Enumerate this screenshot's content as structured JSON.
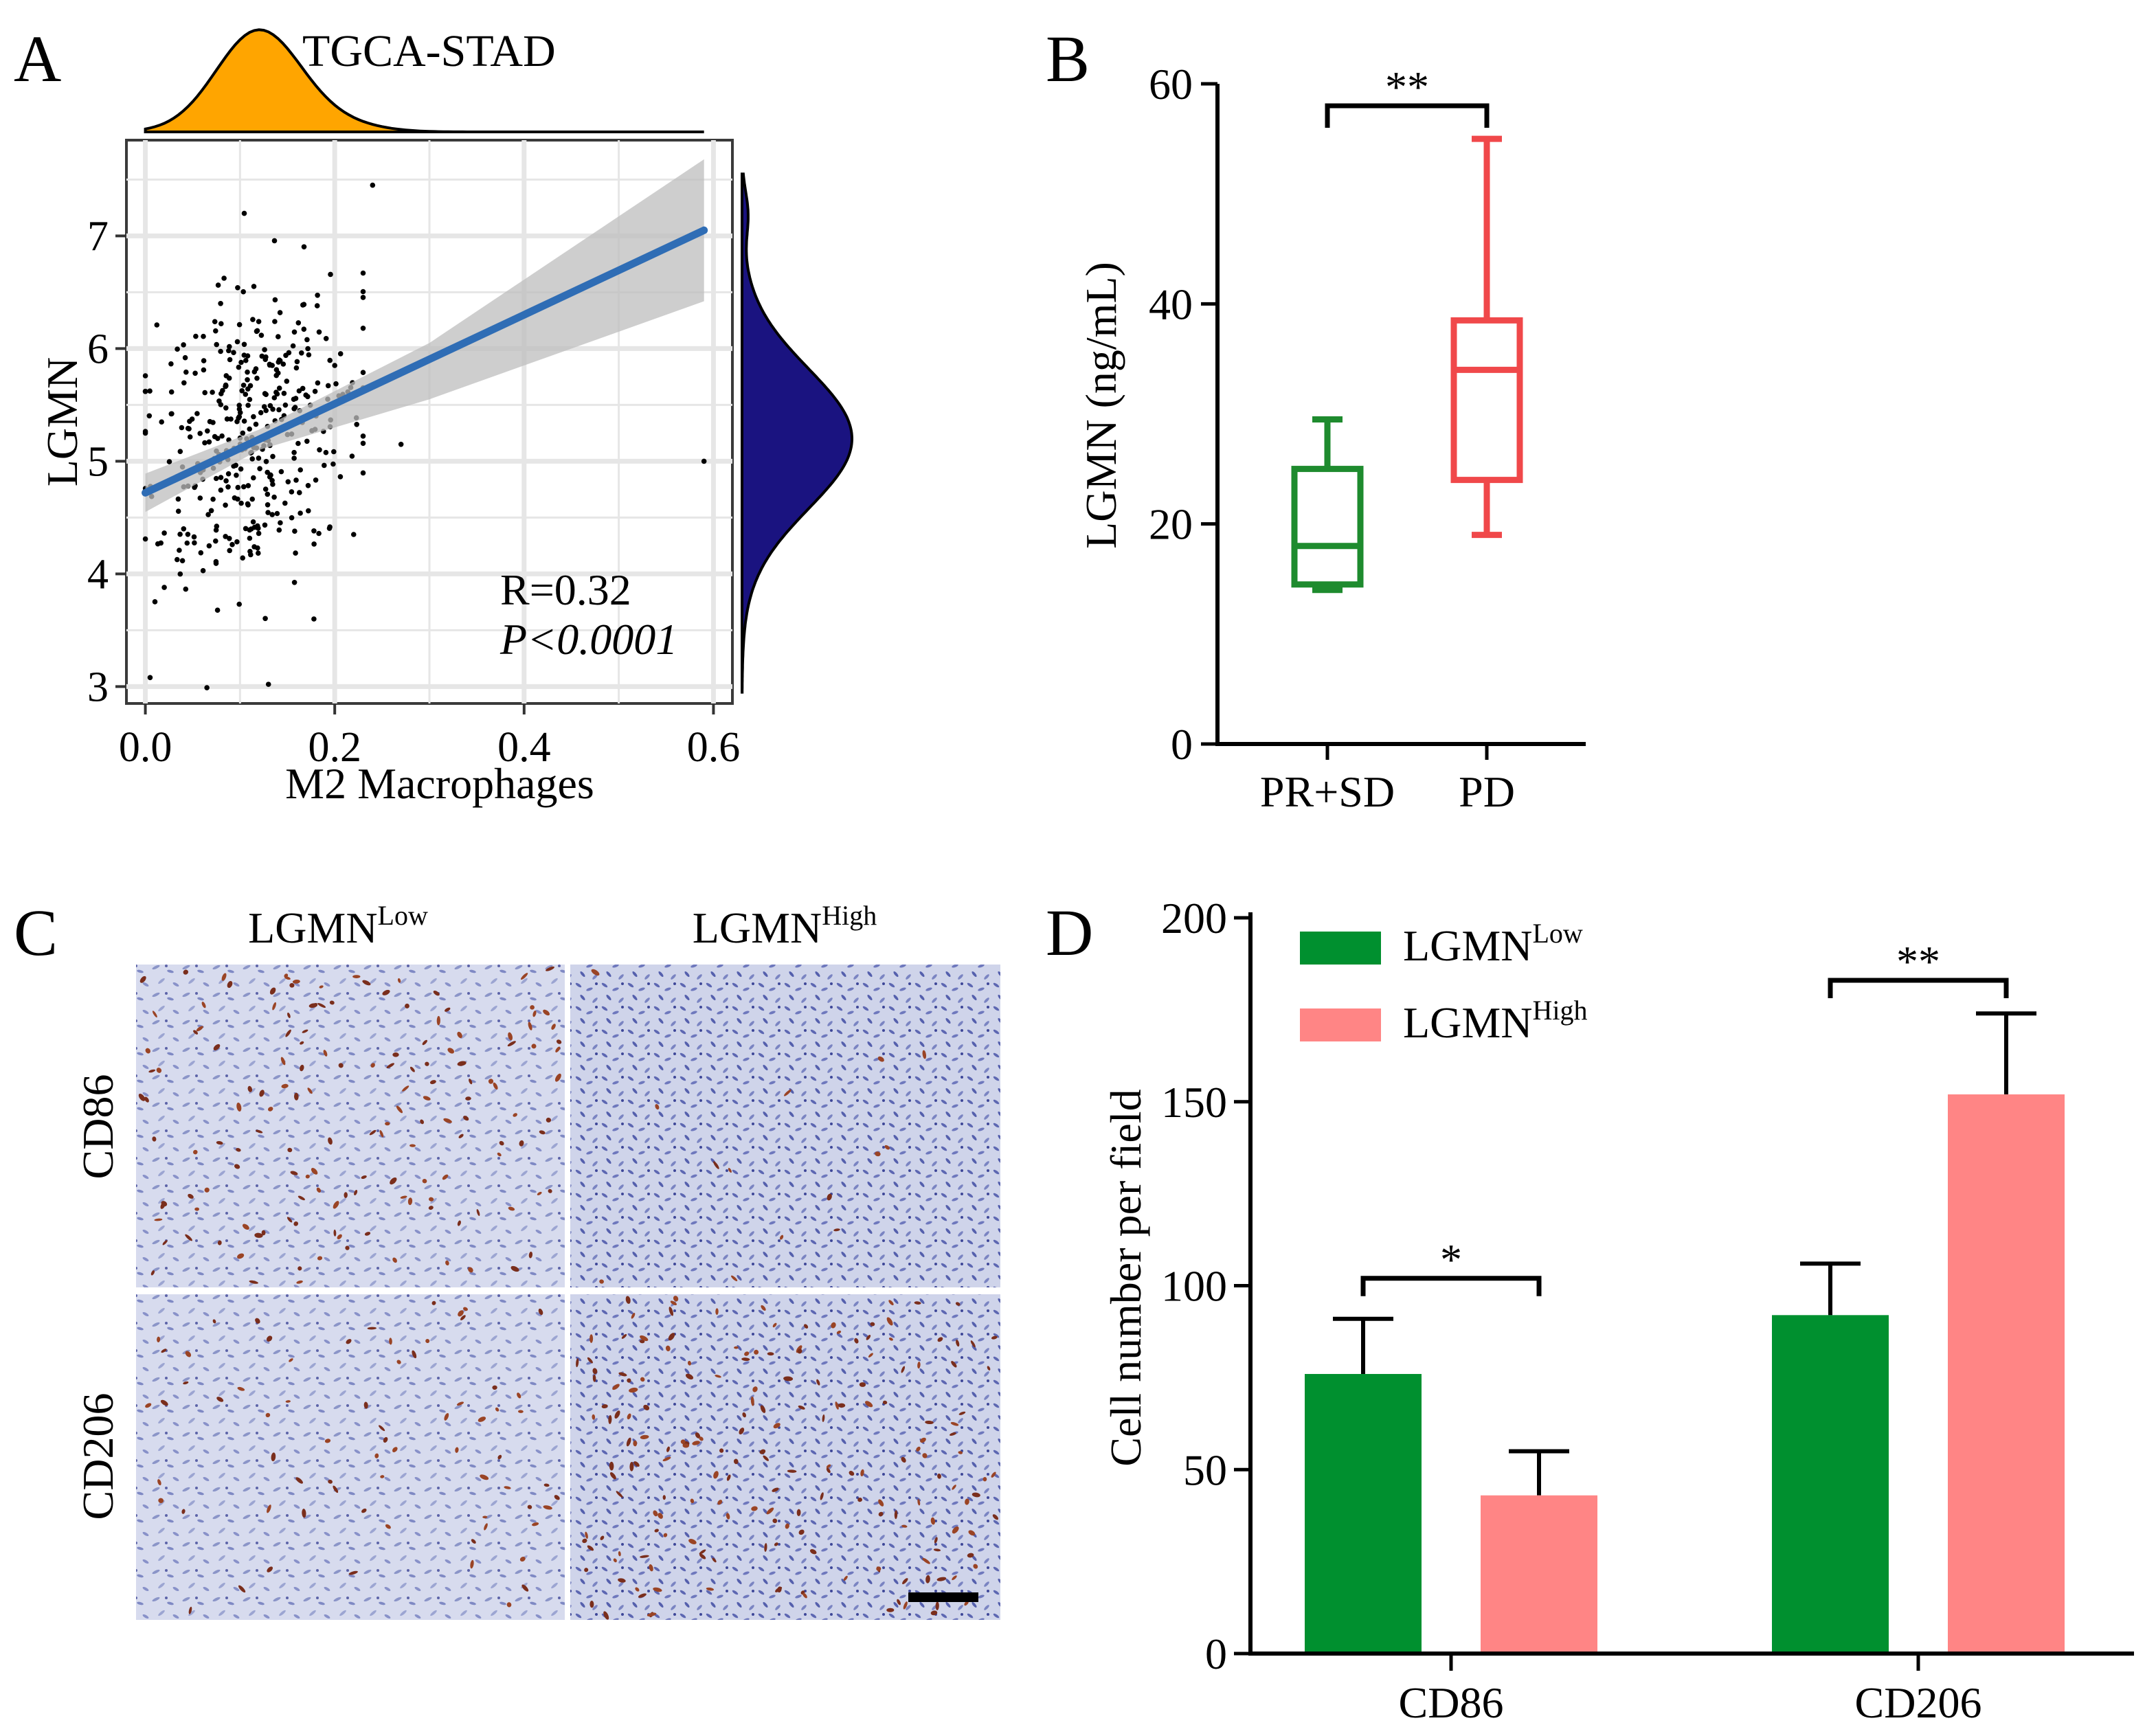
{
  "colors": {
    "orange": "#FFA500",
    "navy": "#1A1380",
    "blue_line": "#2F6DB5",
    "ci_band": "#BEBEBE",
    "green_box": "#1E8B2E",
    "red_box": "#F0484A",
    "bar_green": "#00902F",
    "bar_pink": "#FF8585",
    "panel_grid": "#E6E6E6"
  },
  "panels": {
    "a": {
      "letter": "A"
    },
    "b": {
      "letter": "B"
    },
    "c": {
      "letter": "C"
    },
    "d": {
      "letter": "D"
    }
  },
  "histology": {
    "col_labels": [
      {
        "base": "LGMN",
        "sup": "Low"
      },
      {
        "base": "LGMN",
        "sup": "High"
      }
    ],
    "row_labels": [
      "CD86",
      "CD206"
    ]
  },
  "chart_data": [
    {
      "panel": "A",
      "type": "scatter",
      "title": "TGCA-STAD",
      "xlabel": "M2 Macrophages",
      "ylabel": "LGMN",
      "xlim": [
        -0.02,
        0.62
      ],
      "ylim": [
        2.85,
        7.85
      ],
      "xticks": [
        0.0,
        0.2,
        0.4,
        0.6
      ],
      "xtick_labels": [
        "0.0",
        "0.2",
        "0.4",
        "0.6"
      ],
      "yticks": [
        3,
        4,
        5,
        6,
        7
      ],
      "ytick_labels": [
        "3",
        "4",
        "5",
        "6",
        "7"
      ],
      "grid": true,
      "points_count_estimate": 380,
      "cluster": {
        "x_mean": 0.115,
        "x_sd": 0.055,
        "y_mean": 5.25,
        "y_sd": 0.72
      },
      "outliers": [
        [
          0.59,
          5.0
        ],
        [
          0.27,
          5.15
        ],
        [
          0.24,
          7.45
        ],
        [
          0.2,
          5.85
        ],
        [
          0.22,
          4.35
        ],
        [
          0.005,
          3.08
        ],
        [
          0.065,
          2.99
        ],
        [
          0.13,
          3.02
        ],
        [
          0.0,
          5.62
        ]
      ],
      "regression": {
        "x0": 0.0,
        "y0": 4.72,
        "x1": 0.59,
        "y1": 7.05
      },
      "ci_band": [
        {
          "x": 0.0,
          "lo": 4.55,
          "hi": 4.89
        },
        {
          "x": 0.12,
          "lo": 5.1,
          "hi": 5.28
        },
        {
          "x": 0.3,
          "lo": 5.55,
          "hi": 6.05
        },
        {
          "x": 0.59,
          "lo": 6.42,
          "hi": 7.68
        }
      ],
      "annotations": {
        "r": "R=0.32",
        "p": "P<0.0001"
      },
      "marginal_x": {
        "color": "orange",
        "peak": 0.12
      },
      "marginal_y": {
        "color": "navy",
        "peak": 5.2
      }
    },
    {
      "panel": "B",
      "type": "box",
      "categories": [
        "PR+SD",
        "PD"
      ],
      "ylabel": "LGMN (ng/mL)",
      "ylim": [
        0,
        60
      ],
      "yticks": [
        0,
        20,
        40,
        60
      ],
      "ytick_labels": [
        "0",
        "20",
        "40",
        "60"
      ],
      "series": [
        {
          "name": "PR+SD",
          "min": 14,
          "q1": 14.5,
          "median": 18,
          "q3": 25,
          "max": 29.5,
          "color": "green_box"
        },
        {
          "name": "PD",
          "min": 19,
          "q1": 24,
          "median": 34,
          "q3": 38.5,
          "max": 55,
          "color": "red_box"
        }
      ],
      "significance": [
        {
          "between": [
            "PR+SD",
            "PD"
          ],
          "label": "**",
          "y": 58
        }
      ]
    },
    {
      "panel": "D",
      "type": "bar",
      "categories": [
        "CD86",
        "CD206"
      ],
      "ylabel": "Cell number per field",
      "ylim": [
        0,
        200
      ],
      "yticks": [
        0,
        50,
        100,
        150,
        200
      ],
      "ytick_labels": [
        "0",
        "50",
        "100",
        "150",
        "200"
      ],
      "series": [
        {
          "name": "LGMN Low",
          "legend_base": "LGMN",
          "legend_sup": "Low",
          "values": [
            76,
            92
          ],
          "errors": [
            15,
            14
          ],
          "color": "bar_green"
        },
        {
          "name": "LGMN High",
          "legend_base": "LGMN",
          "legend_sup": "High",
          "values": [
            43,
            152
          ],
          "errors": [
            12,
            22
          ],
          "color": "bar_pink"
        }
      ],
      "significance": [
        {
          "category": "CD86",
          "label": "*",
          "y": 102
        },
        {
          "category": "CD206",
          "label": "**",
          "y": 183
        }
      ],
      "legend": "top-left"
    }
  ]
}
